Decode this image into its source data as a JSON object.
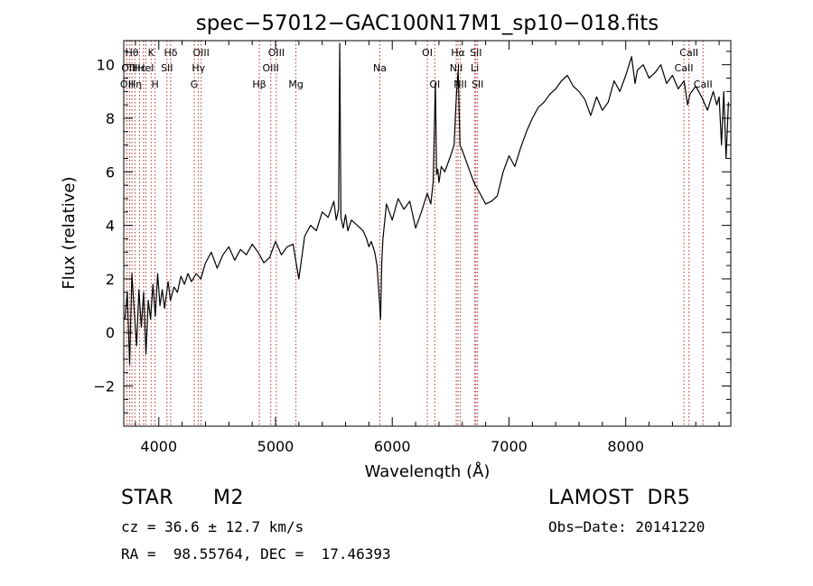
{
  "chart_data": {
    "type": "line",
    "title": "spec−57012−GAC100N17M1_sp10−018.fits",
    "xlabel": "Wavelength (Å)",
    "ylabel": "Flux (relative)",
    "xlim": [
      3700,
      8900
    ],
    "ylim": [
      -3.5,
      10.9
    ],
    "xticks": [
      4000,
      5000,
      6000,
      7000,
      8000
    ],
    "yticks": [
      -2,
      0,
      2,
      4,
      6,
      8,
      10
    ],
    "ytick_labels": [
      "−2",
      "0",
      "2",
      "4",
      "6",
      "8",
      "10"
    ],
    "line_color": "#000000",
    "marker_color": "#b03030",
    "series": [
      {
        "x": [
          3710,
          3730,
          3750,
          3770,
          3790,
          3810,
          3830,
          3850,
          3870,
          3890,
          3910,
          3930,
          3950,
          3970,
          3990,
          4010,
          4030,
          4050,
          4080,
          4100,
          4130,
          4160,
          4190,
          4220,
          4250,
          4280,
          4320,
          4360,
          4400,
          4450,
          4500,
          4550,
          4600,
          4650,
          4700,
          4750,
          4800,
          4850,
          4900,
          4950,
          5000,
          5050,
          5100,
          5150,
          5200,
          5250,
          5300,
          5350,
          5400,
          5450,
          5500,
          5520,
          5540,
          5550,
          5560,
          5580,
          5600,
          5620,
          5650,
          5700,
          5750,
          5780,
          5800,
          5820,
          5850,
          5870,
          5890,
          5900,
          5910,
          5920,
          5950,
          6000,
          6050,
          6100,
          6150,
          6200,
          6250,
          6300,
          6330,
          6350,
          6370,
          6380,
          6390,
          6400,
          6420,
          6450,
          6500,
          6530,
          6550,
          6565,
          6580,
          6600,
          6650,
          6700,
          6750,
          6800,
          6850,
          6900,
          6950,
          7000,
          7050,
          7100,
          7150,
          7200,
          7250,
          7300,
          7350,
          7400,
          7450,
          7500,
          7550,
          7600,
          7650,
          7700,
          7750,
          7800,
          7850,
          7900,
          7950,
          8000,
          8050,
          8080,
          8100,
          8150,
          8200,
          8250,
          8300,
          8350,
          8400,
          8450,
          8500,
          8530,
          8550,
          8600,
          8650,
          8700,
          8750,
          8780,
          8800,
          8820,
          8840,
          8860,
          8880
        ],
        "y": [
          0.5,
          1.5,
          -1.2,
          2.2,
          0.8,
          -0.5,
          1.6,
          0.2,
          1.5,
          -0.8,
          1.2,
          0.5,
          1.8,
          0.6,
          2.2,
          1.0,
          1.6,
          0.9,
          1.9,
          1.2,
          1.7,
          1.5,
          2.1,
          1.8,
          2.2,
          1.9,
          2.2,
          2.0,
          2.6,
          3.0,
          2.4,
          2.9,
          3.2,
          2.7,
          3.1,
          2.9,
          3.3,
          3.0,
          2.6,
          2.8,
          3.4,
          2.9,
          3.2,
          3.3,
          2.0,
          3.6,
          4.0,
          3.8,
          4.5,
          4.3,
          4.9,
          4.2,
          4.6,
          10.8,
          4.3,
          3.9,
          4.4,
          3.8,
          4.2,
          4.0,
          3.8,
          3.5,
          3.2,
          3.4,
          3.0,
          2.5,
          1.2,
          0.5,
          2.6,
          3.5,
          4.8,
          4.2,
          5.0,
          4.6,
          4.9,
          3.9,
          4.5,
          5.2,
          4.8,
          5.6,
          9.3,
          5.9,
          6.1,
          5.6,
          6.2,
          6.0,
          6.6,
          7.0,
          8.9,
          9.8,
          7.0,
          6.8,
          6.2,
          5.6,
          5.2,
          4.8,
          4.9,
          5.1,
          6.0,
          6.6,
          6.2,
          6.9,
          7.5,
          8.0,
          8.4,
          8.6,
          8.9,
          9.1,
          9.4,
          9.6,
          9.2,
          9.0,
          8.7,
          8.1,
          8.8,
          8.3,
          8.6,
          9.4,
          9.0,
          9.6,
          10.3,
          9.3,
          9.8,
          10.0,
          9.5,
          9.7,
          10.0,
          9.3,
          9.6,
          9.1,
          9.4,
          8.5,
          8.9,
          9.2,
          8.8,
          8.3,
          9.0,
          8.5,
          8.8,
          7.0,
          9.0,
          6.5,
          8.6
        ]
      }
    ],
    "lines": [
      {
        "x": 3727,
        "labels": [
          {
            "row": 3,
            "text": "OII"
          }
        ]
      },
      {
        "x": 3750,
        "labels": [
          {
            "row": 2,
            "text": "OIII"
          }
        ]
      },
      {
        "x": 3770,
        "labels": [
          {
            "row": 1,
            "text": "Hθ"
          }
        ]
      },
      {
        "x": 3798,
        "labels": [
          {
            "row": 3,
            "text": "Hη"
          }
        ]
      },
      {
        "x": 3835,
        "labels": [
          {
            "row": 2,
            "text": "Hε"
          }
        ]
      },
      {
        "x": 3869,
        "labels": []
      },
      {
        "x": 3889,
        "labels": [
          {
            "row": 2,
            "text": "HeI"
          }
        ]
      },
      {
        "x": 3934,
        "labels": [
          {
            "row": 1,
            "text": "K"
          }
        ]
      },
      {
        "x": 3968,
        "labels": [
          {
            "row": 3,
            "text": "H"
          }
        ]
      },
      {
        "x": 4070,
        "labels": [
          {
            "row": 2,
            "text": "SII"
          }
        ]
      },
      {
        "x": 4102,
        "labels": [
          {
            "row": 1,
            "text": "Hδ"
          }
        ]
      },
      {
        "x": 4304,
        "labels": [
          {
            "row": 3,
            "text": "G"
          }
        ]
      },
      {
        "x": 4340,
        "labels": [
          {
            "row": 2,
            "text": "Hγ"
          }
        ]
      },
      {
        "x": 4363,
        "labels": [
          {
            "row": 1,
            "text": "OIII"
          }
        ]
      },
      {
        "x": 4861,
        "labels": [
          {
            "row": 3,
            "text": "Hβ"
          }
        ]
      },
      {
        "x": 4959,
        "labels": [
          {
            "row": 2,
            "text": "OIII"
          }
        ]
      },
      {
        "x": 5007,
        "labels": [
          {
            "row": 1,
            "text": "OIII"
          }
        ]
      },
      {
        "x": 5175,
        "labels": [
          {
            "row": 3,
            "text": "Mg"
          }
        ]
      },
      {
        "x": 5894,
        "labels": [
          {
            "row": 2,
            "text": "Na"
          }
        ]
      },
      {
        "x": 6300,
        "labels": [
          {
            "row": 1,
            "text": "OI"
          }
        ]
      },
      {
        "x": 6364,
        "labels": [
          {
            "row": 3,
            "text": "OI"
          }
        ]
      },
      {
        "x": 6548,
        "labels": [
          {
            "row": 2,
            "text": "NII"
          }
        ]
      },
      {
        "x": 6563,
        "labels": [
          {
            "row": 1,
            "text": "Hα"
          }
        ]
      },
      {
        "x": 6583,
        "labels": [
          {
            "row": 3,
            "text": "NII"
          }
        ]
      },
      {
        "x": 6707,
        "labels": [
          {
            "row": 2,
            "text": "Li"
          }
        ]
      },
      {
        "x": 6716,
        "labels": [
          {
            "row": 1,
            "text": "SII"
          }
        ]
      },
      {
        "x": 6731,
        "labels": [
          {
            "row": 3,
            "text": "SII"
          }
        ]
      },
      {
        "x": 8498,
        "labels": [
          {
            "row": 2,
            "text": "CaII"
          }
        ]
      },
      {
        "x": 8542,
        "labels": [
          {
            "row": 1,
            "text": "CaII"
          }
        ]
      },
      {
        "x": 8662,
        "labels": [
          {
            "row": 3,
            "text": "CaII"
          }
        ]
      }
    ]
  },
  "info": {
    "object_class": "STAR",
    "subclass": "M2",
    "survey": "LAMOST  DR5",
    "cz": "cz = 36.6 ± 12.7 km/s",
    "obs_date": "Obs−Date: 20141220",
    "coords": "RA =  98.55764, DEC =  17.46393"
  }
}
